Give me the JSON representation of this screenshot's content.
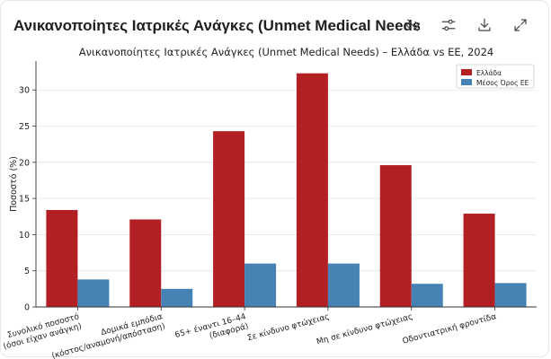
{
  "header": {
    "title": "Ανικανοποίητες Ιατρικές Ανάγκες (Unmet Medical Needs) – ...",
    "actions": [
      {
        "name": "hide-code-button",
        "icon": "code-off-icon"
      },
      {
        "name": "settings-button",
        "icon": "sliders-icon"
      },
      {
        "name": "download-button",
        "icon": "download-icon"
      },
      {
        "name": "expand-button",
        "icon": "expand-icon"
      }
    ]
  },
  "chart_data": {
    "type": "bar",
    "title": "Ανικανοποίητες Ιατρικές Ανάγκες (Unmet Medical Needs) – Ελλάδα vs ΕΕ, 2024",
    "xlabel": "",
    "ylabel": "Ποσοστό (%)",
    "ylim": [
      0,
      34
    ],
    "yticks": [
      0,
      5,
      10,
      15,
      20,
      25,
      30
    ],
    "grid": true,
    "legend_position": "top-right",
    "categories": [
      [
        "Συνολικό ποσοστό",
        "(όσοι είχαν ανάγκη)"
      ],
      [
        "Δομικά εμπόδια",
        "(κόστος/αναμονή/απόσταση)"
      ],
      [
        "65+ έναντι 16–44",
        "(διαφορά)"
      ],
      [
        "Σε κίνδυνο φτώχειας"
      ],
      [
        "Μη σε κίνδυνο φτώχειας"
      ],
      [
        "Οδοντιατρική φροντίδα"
      ]
    ],
    "series": [
      {
        "name": "Ελλάδα",
        "color": "#b22024",
        "values": [
          13.4,
          12.1,
          24.3,
          32.3,
          19.6,
          12.9
        ]
      },
      {
        "name": "Μέσος Όρος ΕΕ",
        "color": "#4682b4",
        "values": [
          3.8,
          2.5,
          6.0,
          6.0,
          3.2,
          3.3
        ]
      }
    ]
  }
}
